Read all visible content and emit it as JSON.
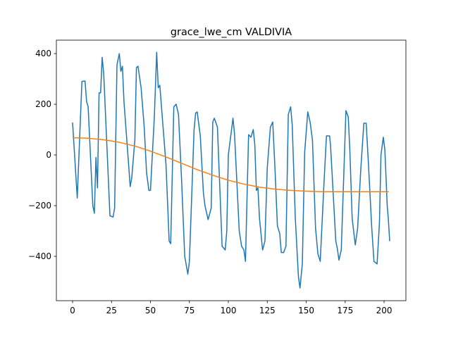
{
  "chart_data": {
    "type": "line",
    "title": "grace_lwe_cm VALDIVIA",
    "xlim": [
      -10.4,
      214
    ],
    "ylim": [
      -575,
      453
    ],
    "xticks": [
      0,
      25,
      50,
      75,
      100,
      125,
      150,
      175,
      200
    ],
    "yticks": [
      {
        "value": -400,
        "label": "−400"
      },
      {
        "value": -200,
        "label": "−200"
      },
      0,
      200,
      400
    ],
    "grid": false,
    "series": [
      {
        "color": "#1f77b4",
        "x": [
          0,
          3,
          6,
          8,
          9,
          10,
          13,
          14,
          15,
          16,
          17,
          18,
          19,
          20,
          24,
          26,
          27,
          28.5,
          30,
          31,
          32,
          33,
          36,
          37,
          38,
          40,
          41,
          42,
          44,
          46,
          47.5,
          49,
          50,
          52.5,
          54,
          55,
          56,
          60,
          62,
          63,
          65,
          66.5,
          68,
          70,
          72,
          74,
          75,
          78,
          79,
          80,
          82,
          84,
          85,
          87,
          89,
          90,
          91,
          93,
          96,
          98,
          99,
          100,
          103,
          104,
          107,
          108.5,
          110,
          111,
          113,
          114.5,
          116,
          117,
          118,
          119,
          120,
          122,
          123.5,
          125,
          127,
          128.5,
          130,
          131.5,
          133,
          134,
          135.5,
          137,
          138.5,
          140,
          141,
          143,
          145,
          146,
          147.5,
          149,
          151,
          152.5,
          154,
          156,
          157.5,
          159,
          161.5,
          163,
          165,
          165.6,
          169,
          170,
          171,
          172.5,
          174,
          175.5,
          177,
          178,
          179.5,
          181.5,
          183,
          185,
          187,
          188.5,
          190,
          192,
          193.5,
          195.5,
          197,
          198,
          199.5,
          200.5,
          202,
          202.7,
          203.6
        ],
        "values": [
          128,
          -170,
          290,
          292,
          210,
          190,
          -200,
          -230,
          -10,
          -130,
          245,
          245,
          385,
          320,
          -240,
          -245,
          -210,
          355,
          400,
          330,
          350,
          210,
          -40,
          -125,
          -90,
          60,
          345,
          350,
          265,
          110,
          -70,
          -140,
          -140,
          150,
          405,
          265,
          275,
          -40,
          -340,
          -350,
          190,
          200,
          160,
          -100,
          -400,
          -470,
          -420,
          100,
          165,
          170,
          75,
          -150,
          -200,
          -255,
          -210,
          130,
          145,
          110,
          -360,
          -375,
          -300,
          0,
          145,
          80,
          -300,
          -360,
          -375,
          -420,
          80,
          70,
          100,
          40,
          -140,
          -130,
          -250,
          -375,
          -340,
          -50,
          110,
          130,
          -60,
          -280,
          -310,
          -385,
          -385,
          -360,
          160,
          190,
          120,
          -250,
          -480,
          -525,
          -430,
          10,
          170,
          130,
          60,
          -290,
          -390,
          -420,
          -100,
          75,
          75,
          40,
          -340,
          -370,
          -415,
          -375,
          -100,
          175,
          150,
          20,
          -250,
          -355,
          -290,
          -60,
          125,
          125,
          -40,
          -280,
          -420,
          -430,
          -270,
          0,
          70,
          20,
          -200,
          -250,
          -340
        ]
      },
      {
        "color": "#ff7f0e",
        "x": [
          0,
          10,
          20,
          30,
          40,
          50,
          60,
          70,
          80,
          90,
          100,
          110,
          120,
          130,
          140,
          150,
          160,
          170,
          180,
          190,
          203
        ],
        "values": [
          68,
          66,
          60,
          50,
          35,
          15,
          -8,
          -33,
          -58,
          -80,
          -100,
          -115,
          -127,
          -135,
          -140,
          -143,
          -145,
          -145,
          -145,
          -145,
          -145
        ]
      }
    ]
  }
}
